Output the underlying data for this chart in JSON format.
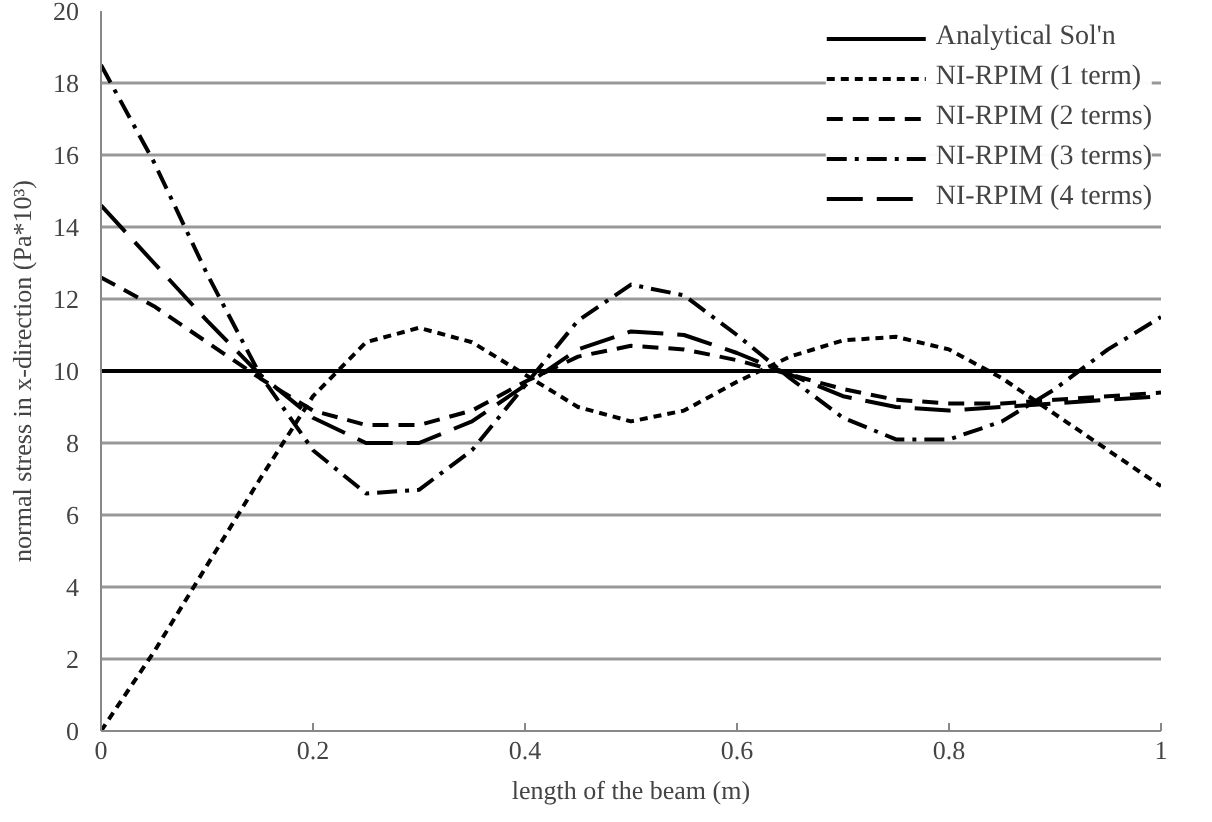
{
  "chart_data": {
    "type": "line",
    "xlabel": "length of the beam (m)",
    "ylabel": "normal stress in x-direction (Pa*10³)",
    "x": [
      0,
      0.05,
      0.1,
      0.15,
      0.2,
      0.25,
      0.3,
      0.35,
      0.4,
      0.45,
      0.5,
      0.55,
      0.6,
      0.65,
      0.7,
      0.75,
      0.8,
      0.85,
      0.9,
      0.95,
      1
    ],
    "series": [
      {
        "name": "Analytical Sol'n",
        "color": "#000000",
        "line_style": "solid",
        "values": [
          10,
          10,
          10,
          10,
          10,
          10,
          10,
          10,
          10,
          10,
          10,
          10,
          10,
          10,
          10,
          10,
          10,
          10,
          10,
          10,
          10
        ]
      },
      {
        "name": "NI-RPIM (1 term)",
        "color": "#000000",
        "line_style": "dotted",
        "values": [
          0,
          2.2,
          4.6,
          7.0,
          9.3,
          10.8,
          11.2,
          10.8,
          9.9,
          9.0,
          8.6,
          8.9,
          9.7,
          10.4,
          10.85,
          10.95,
          10.6,
          9.8,
          8.8,
          7.8,
          6.8
        ]
      },
      {
        "name": "NI-RPIM (2 terms)",
        "color": "#000000",
        "line_style": "dashed",
        "values": [
          12.6,
          11.8,
          10.8,
          9.8,
          8.9,
          8.5,
          8.5,
          8.9,
          9.7,
          10.4,
          10.7,
          10.6,
          10.3,
          9.9,
          9.5,
          9.2,
          9.1,
          9.1,
          9.2,
          9.3,
          9.4
        ]
      },
      {
        "name": "NI-RPIM (3 terms)",
        "color": "#000000",
        "line_style": "dashdot",
        "values": [
          18.5,
          15.8,
          12.7,
          9.9,
          7.8,
          6.6,
          6.7,
          7.8,
          9.6,
          11.4,
          12.4,
          12.1,
          11.0,
          9.8,
          8.7,
          8.1,
          8.1,
          8.6,
          9.5,
          10.6,
          11.5
        ]
      },
      {
        "name": "NI-RPIM (4 terms)",
        "color": "#000000",
        "line_style": "longdash",
        "values": [
          14.6,
          13.0,
          11.4,
          9.9,
          8.7,
          8.0,
          8.0,
          8.6,
          9.6,
          10.6,
          11.1,
          11.0,
          10.5,
          9.9,
          9.3,
          9.0,
          8.9,
          9.0,
          9.1,
          9.2,
          9.3
        ]
      }
    ],
    "xlim": [
      0,
      1
    ],
    "xticks": [
      0,
      0.2,
      0.4,
      0.6,
      0.8,
      1
    ],
    "ylim": [
      0,
      20
    ],
    "yticks": [
      0,
      2,
      4,
      6,
      8,
      10,
      12,
      14,
      16,
      18,
      20
    ],
    "grid": "y",
    "legend": "top right",
    "marker": "none"
  }
}
